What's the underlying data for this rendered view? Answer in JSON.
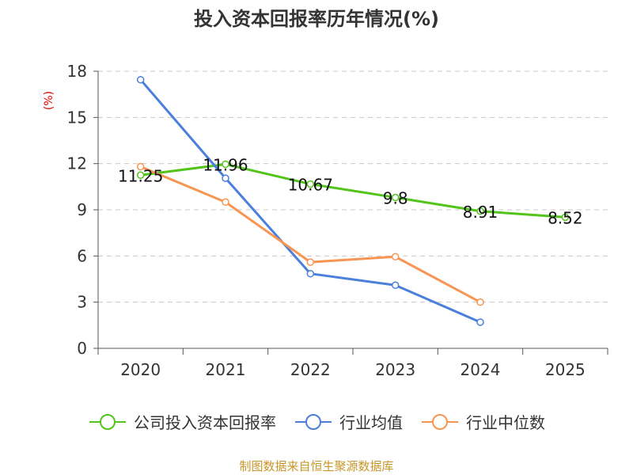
{
  "chart_data": {
    "type": "line",
    "title": "投入资本回报率历年情况(%)",
    "ylabel": "(%)",
    "xlabel": "",
    "categories": [
      "2020",
      "2021",
      "2022",
      "2023",
      "2024",
      "2025"
    ],
    "ylim": [
      0,
      18
    ],
    "yticks": [
      0,
      3,
      6,
      9,
      12,
      15,
      18
    ],
    "grid": "horizontal-dashed",
    "legend_position": "bottom",
    "series": [
      {
        "name": "公司投入资本回报率",
        "color": "#52c41a",
        "values": [
          11.25,
          11.96,
          10.67,
          9.8,
          8.91,
          8.52
        ],
        "labels": [
          "11.25",
          "11.96",
          "10.67",
          "9.8",
          "8.91",
          "8.52"
        ],
        "show_labels": true
      },
      {
        "name": "行业均值",
        "color": "#4a7fdc",
        "values": [
          17.45,
          11.05,
          4.85,
          4.1,
          1.7,
          null
        ],
        "show_labels": false
      },
      {
        "name": "行业中位数",
        "color": "#f79552",
        "values": [
          11.8,
          9.5,
          5.6,
          5.95,
          3.0,
          null
        ],
        "show_labels": false
      }
    ]
  },
  "source": "制图数据来自恒生聚源数据库"
}
